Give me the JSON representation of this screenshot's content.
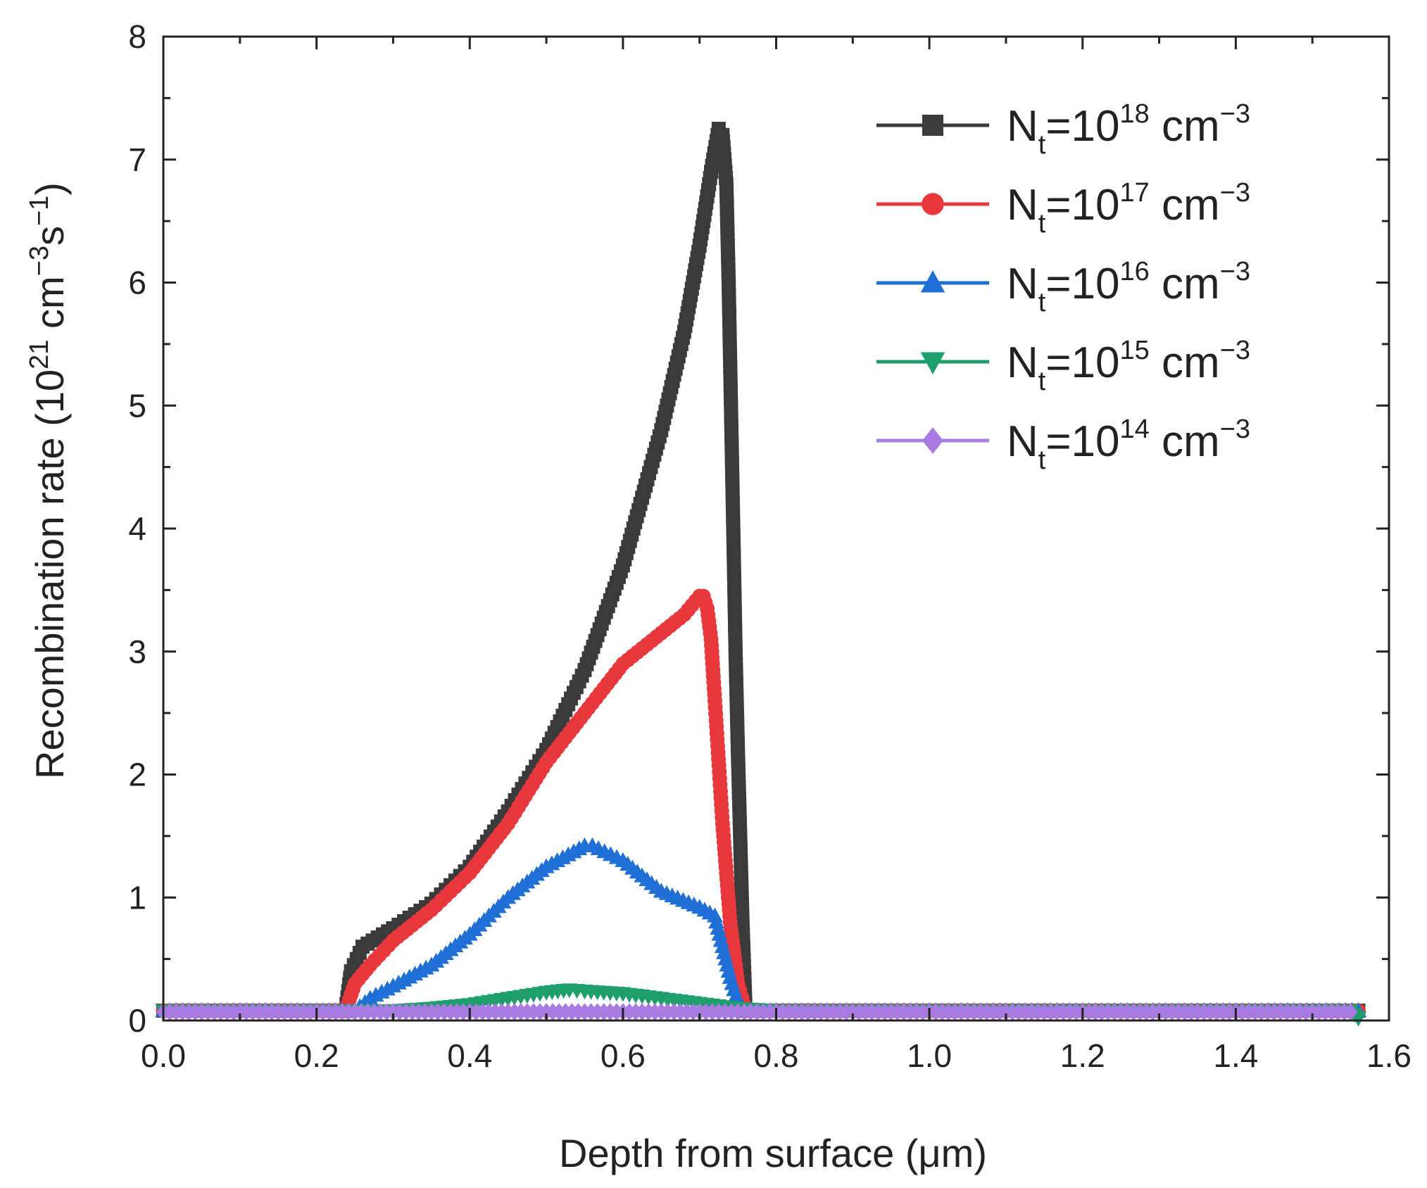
{
  "chart_data": {
    "type": "line",
    "title": "",
    "xlabel": "Depth from surface (μm)",
    "ylabel": {
      "prefix": "Recombination rate (10",
      "exp1": "21",
      "mid1": " cm",
      "exp2": "−3",
      "mid2": "s",
      "exp3": "−1",
      "suffix": ")"
    },
    "xlim": [
      0.0,
      1.6
    ],
    "ylim": [
      0,
      8
    ],
    "x_ticks": [
      "0.0",
      "0.2",
      "0.4",
      "0.6",
      "0.8",
      "1.0",
      "1.2",
      "1.4",
      "1.6"
    ],
    "y_ticks": [
      "0",
      "1",
      "2",
      "3",
      "4",
      "5",
      "6",
      "7",
      "8"
    ],
    "legend_position": "top-right",
    "series": [
      {
        "name": "Nt=10^18 cm^-3",
        "legend": {
          "base": "N",
          "sub": "t",
          "eq": "=10",
          "exp": "18",
          "unit": " cm",
          "unit_exp": "−3"
        },
        "color": "#3a3a3a",
        "marker": "square",
        "x": [
          0.0,
          0.1,
          0.2,
          0.238,
          0.245,
          0.26,
          0.3,
          0.35,
          0.4,
          0.45,
          0.5,
          0.55,
          0.6,
          0.65,
          0.68,
          0.7,
          0.715,
          0.725,
          0.73,
          0.735,
          0.738,
          0.741,
          0.744,
          0.747,
          0.75,
          0.753,
          0.756,
          0.76,
          0.8,
          1.0,
          1.2,
          1.4,
          1.55,
          1.56
        ],
        "y": [
          0.08,
          0.08,
          0.08,
          0.08,
          0.4,
          0.6,
          0.75,
          0.95,
          1.25,
          1.7,
          2.2,
          2.85,
          3.7,
          4.8,
          5.6,
          6.3,
          6.9,
          7.25,
          7.2,
          6.8,
          6.0,
          5.0,
          4.0,
          3.0,
          2.2,
          1.5,
          0.8,
          0.08,
          0.08,
          0.08,
          0.08,
          0.08,
          0.08,
          0.08
        ]
      },
      {
        "name": "Nt=10^17 cm^-3",
        "legend": {
          "base": "N",
          "sub": "t",
          "eq": "=10",
          "exp": "17",
          "unit": " cm",
          "unit_exp": "−3"
        },
        "color": "#e8383d",
        "marker": "circle",
        "x": [
          0.0,
          0.2,
          0.238,
          0.25,
          0.27,
          0.3,
          0.35,
          0.4,
          0.45,
          0.5,
          0.55,
          0.6,
          0.65,
          0.68,
          0.7,
          0.705,
          0.71,
          0.715,
          0.72,
          0.73,
          0.74,
          0.75,
          0.76,
          0.8,
          1.0,
          1.2,
          1.4,
          1.56
        ],
        "y": [
          0.08,
          0.08,
          0.08,
          0.3,
          0.45,
          0.65,
          0.9,
          1.2,
          1.6,
          2.1,
          2.5,
          2.9,
          3.15,
          3.3,
          3.45,
          3.45,
          3.35,
          3.1,
          2.6,
          1.6,
          0.8,
          0.3,
          0.08,
          0.08,
          0.08,
          0.08,
          0.08,
          0.08
        ]
      },
      {
        "name": "Nt=10^16 cm^-3",
        "legend": {
          "base": "N",
          "sub": "t",
          "eq": "=10",
          "exp": "16",
          "unit": " cm",
          "unit_exp": "−3"
        },
        "color": "#1f6fd6",
        "marker": "triangle-up",
        "x": [
          0.0,
          0.2,
          0.25,
          0.27,
          0.3,
          0.35,
          0.4,
          0.45,
          0.5,
          0.55,
          0.56,
          0.6,
          0.65,
          0.7,
          0.72,
          0.73,
          0.74,
          0.75,
          0.76,
          0.8,
          1.0,
          1.2,
          1.4,
          1.56
        ],
        "y": [
          0.08,
          0.08,
          0.08,
          0.18,
          0.28,
          0.45,
          0.7,
          1.0,
          1.25,
          1.42,
          1.42,
          1.3,
          1.05,
          0.92,
          0.85,
          0.6,
          0.35,
          0.15,
          0.08,
          0.08,
          0.08,
          0.08,
          0.08,
          0.08
        ]
      },
      {
        "name": "Nt=10^15 cm^-3",
        "legend": {
          "base": "N",
          "sub": "t",
          "eq": "=10",
          "exp": "15",
          "unit": " cm",
          "unit_exp": "−3"
        },
        "color": "#1e9e6a",
        "marker": "triangle-down",
        "x": [
          0.0,
          0.2,
          0.3,
          0.35,
          0.4,
          0.45,
          0.5,
          0.53,
          0.55,
          0.6,
          0.65,
          0.7,
          0.75,
          0.8,
          1.0,
          1.2,
          1.4,
          1.55,
          1.56
        ],
        "y": [
          0.08,
          0.08,
          0.08,
          0.1,
          0.13,
          0.18,
          0.23,
          0.25,
          0.24,
          0.22,
          0.18,
          0.14,
          0.1,
          0.08,
          0.08,
          0.08,
          0.08,
          0.08,
          0.02
        ]
      },
      {
        "name": "Nt=10^14 cm^-3",
        "legend": {
          "base": "N",
          "sub": "t",
          "eq": "=10",
          "exp": "14",
          "unit": " cm",
          "unit_exp": "−3"
        },
        "color": "#a77be0",
        "marker": "diamond",
        "x": [
          0.0,
          0.2,
          0.4,
          0.6,
          0.8,
          1.0,
          1.2,
          1.4,
          1.55
        ],
        "y": [
          0.07,
          0.07,
          0.07,
          0.07,
          0.07,
          0.07,
          0.07,
          0.07,
          0.07
        ]
      }
    ]
  }
}
